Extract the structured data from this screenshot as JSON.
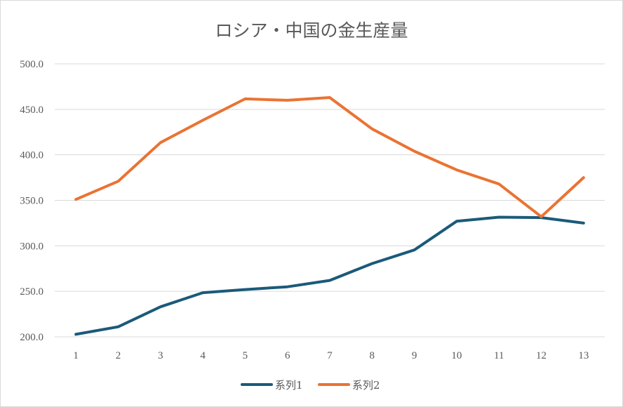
{
  "chart_data": {
    "type": "line",
    "title": "ロシア・中国の金生産量",
    "xlabel": "",
    "ylabel": "",
    "categories": [
      "1",
      "2",
      "3",
      "4",
      "5",
      "6",
      "7",
      "8",
      "9",
      "10",
      "11",
      "12",
      "13"
    ],
    "ylim": [
      200,
      500
    ],
    "yticks": [
      "200.0",
      "250.0",
      "300.0",
      "350.0",
      "400.0",
      "450.0",
      "500.0"
    ],
    "grid": true,
    "legend": "bottom",
    "series": [
      {
        "name": "系列1",
        "color": "#1b5a7a",
        "values": [
          202.8,
          211.0,
          233.0,
          248.5,
          252.0,
          255.0,
          262.0,
          280.5,
          295.5,
          327.0,
          331.5,
          331.0,
          325.0
        ]
      },
      {
        "name": "系列2",
        "color": "#ea7333",
        "values": [
          351.0,
          371.0,
          413.5,
          438.0,
          461.5,
          460.0,
          463.0,
          428.5,
          404.0,
          383.5,
          368.0,
          332.0,
          375.0
        ]
      }
    ]
  }
}
